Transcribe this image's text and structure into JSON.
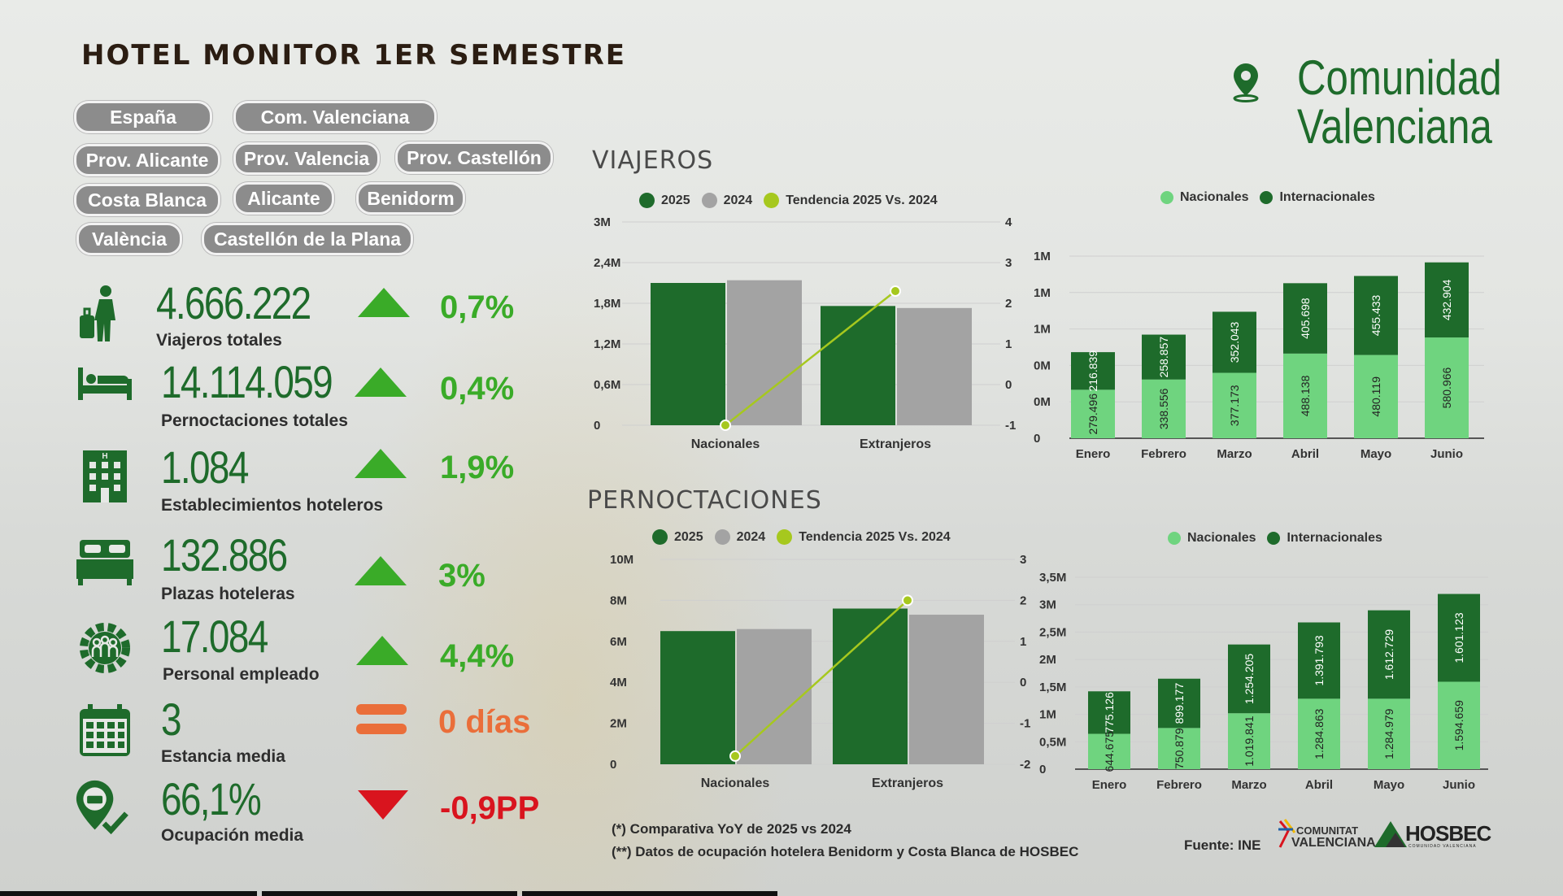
{
  "header": {
    "title": "HOTEL MONITOR 1ER SEMESTRE",
    "region": "Comunidad Valenciana"
  },
  "filters": [
    "España",
    "Com. Valenciana",
    "Prov. Alicante",
    "Prov. Valencia",
    "Prov. Castellón",
    "Costa Blanca",
    "Alicante",
    "Benidorm",
    "València",
    "Castellón de la Plana"
  ],
  "kpis": [
    {
      "value": "4.666.222",
      "label": "Viajeros totales",
      "change": "0,7%",
      "trend": "up",
      "icon": "traveler-icon"
    },
    {
      "value": "14.114.059",
      "label": "Pernoctaciones totales",
      "change": "0,4%",
      "trend": "up",
      "icon": "bed-icon"
    },
    {
      "value": "1.084",
      "label": "Establecimientos hoteleros",
      "change": "1,9%",
      "trend": "up",
      "icon": "hotel-building-icon"
    },
    {
      "value": "132.886",
      "label": "Plazas hoteleras",
      "change": "3%",
      "trend": "up",
      "icon": "double-bed-icon"
    },
    {
      "value": "17.084",
      "label": "Personal empleado",
      "change": "4,4%",
      "trend": "up",
      "icon": "staff-gear-icon"
    },
    {
      "value": "3",
      "label": "Estancia media",
      "change": "0 días",
      "trend": "equal",
      "icon": "calendar-icon"
    },
    {
      "value": "66,1%",
      "label": "Ocupación media",
      "change": "-0,9PP",
      "trend": "down",
      "icon": "occupancy-check-icon"
    }
  ],
  "colors": {
    "green_dark": "#1e6b2b",
    "green_light": "#6fd47f",
    "gray": "#a3a3a3",
    "trend_line": "#a6c81e",
    "up": "#3aab28",
    "equal": "#ea6e3a",
    "down": "#d9141e"
  },
  "sections": {
    "viajeros": "VIAJEROS",
    "pernoctaciones": "PERNOCTACIONES"
  },
  "legends": {
    "year_a": "2025",
    "year_b": "2024",
    "trend": "Tendencia 2025 Vs. 2024",
    "nacionales": "Nacionales",
    "internacionales": "Internacionales"
  },
  "footer": {
    "note1": "(*) Comparativa YoY de 2025 vs 2024",
    "note2": "(**) Datos de ocupación hotelera Benidorm y Costa Blanca de HOSBEC",
    "source": "Fuente: INE",
    "logo1_line1": "COMUNITAT",
    "logo1_line2": "VALENCIANA",
    "logo2": "HOSBEC",
    "logo2_sub": "COMUNIDAD VALENCIANA"
  },
  "chart_data": [
    {
      "id": "viajeros-yoy",
      "type": "bar",
      "categories": [
        "Nacionales",
        "Extranjeros"
      ],
      "series": [
        {
          "name": "2025",
          "values": [
            2.1,
            1.76
          ]
        },
        {
          "name": "2024",
          "values": [
            2.14,
            1.73
          ]
        }
      ],
      "trend": {
        "name": "Tendencia 2025 Vs. 2024",
        "values": [
          -1,
          2.3
        ]
      },
      "ylim": [
        0,
        3
      ],
      "y2lim": [
        -1,
        4
      ],
      "yticks": [
        "0",
        "0,6M",
        "1,2M",
        "1,8M",
        "2,4M",
        "3M"
      ],
      "y2ticks": [
        "-1",
        "0",
        "1",
        "2",
        "3",
        "4"
      ]
    },
    {
      "id": "viajeros-monthly",
      "type": "bar",
      "stacked": true,
      "categories": [
        "Enero",
        "Febrero",
        "Marzo",
        "Abril",
        "Mayo",
        "Junio"
      ],
      "series": [
        {
          "name": "Nacionales",
          "values": [
            279496,
            338556,
            377173,
            488138,
            480119,
            580966
          ],
          "labels": [
            "279.496",
            "338.556",
            "377.173",
            "488.138",
            "480.119",
            "580.966"
          ]
        },
        {
          "name": "Internacionales",
          "values": [
            216839,
            258857,
            352043,
            405698,
            455433,
            432904
          ],
          "labels": [
            "216.839",
            "258.857",
            "352.043",
            "405.698",
            "455.433",
            "432.904"
          ]
        }
      ],
      "ylim": [
        0,
        1050000
      ],
      "yticks": [
        "0",
        "0M",
        "0M",
        "1M",
        "1M",
        "1M"
      ]
    },
    {
      "id": "pernoctaciones-yoy",
      "type": "bar",
      "categories": [
        "Nacionales",
        "Extranjeros"
      ],
      "series": [
        {
          "name": "2025",
          "values": [
            6.5,
            7.6
          ]
        },
        {
          "name": "2024",
          "values": [
            6.6,
            7.3
          ]
        }
      ],
      "trend": {
        "name": "Tendencia 2025 Vs. 2024",
        "values": [
          -1.8,
          2
        ]
      },
      "ylim": [
        0,
        10
      ],
      "y2lim": [
        -2,
        3
      ],
      "yticks": [
        "0",
        "2M",
        "4M",
        "6M",
        "8M",
        "10M"
      ],
      "y2ticks": [
        "-2",
        "-1",
        "0",
        "1",
        "2",
        "3"
      ]
    },
    {
      "id": "pernoctaciones-monthly",
      "type": "bar",
      "stacked": true,
      "categories": [
        "Enero",
        "Febrero",
        "Marzo",
        "Abril",
        "Mayo",
        "Junio"
      ],
      "series": [
        {
          "name": "Nacionales",
          "values": [
            644675,
            750879,
            1019841,
            1284863,
            1284979,
            1594659
          ],
          "labels": [
            "644.675",
            "750.879",
            "1.019.841",
            "1.284.863",
            "1.284.979",
            "1.594.659"
          ]
        },
        {
          "name": "Internacionales",
          "values": [
            775126,
            899177,
            1254205,
            1391793,
            1612729,
            1601123
          ],
          "labels": [
            "775.126",
            "899.177",
            "1.254.205",
            "1.391.793",
            "1.612.729",
            "1.601.123"
          ]
        }
      ],
      "ylim": [
        0,
        3500000
      ],
      "yticks": [
        "0",
        "0,5M",
        "1M",
        "1,5M",
        "2M",
        "2,5M",
        "3M",
        "3,5M"
      ]
    }
  ]
}
